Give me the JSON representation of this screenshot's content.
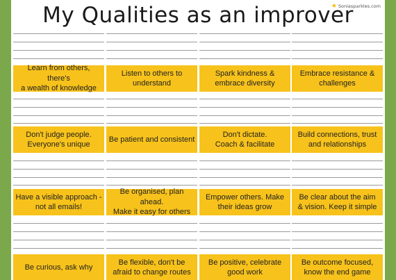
{
  "title": "My Qualities as an improver",
  "brand": {
    "name": "Soniasparkles.com",
    "icon": "star-icon",
    "color": "#f2b800"
  },
  "colors": {
    "card": "#f7c21b",
    "border": "#7aa84a"
  },
  "rows": [
    [
      "Learn from others, there's\na wealth of knowledge",
      "Listen to others to\nunderstand",
      "Spark kindness &\nembrace diversity",
      "Embrace resistance &\nchallenges"
    ],
    [
      "Don't judge people.\nEveryone's unique",
      "Be patient and consistent",
      "Don't dictate.\nCoach & facilitate",
      "Build connections, trust\nand relationships"
    ],
    [
      "Have a visible approach -\nnot all emails!",
      "Be organised, plan ahead.\nMake it easy for others",
      "Empower others. Make\ntheir ideas grow",
      "Be clear about the aim\n& vision. Keep it simple"
    ],
    [
      "Be curious, ask why",
      "Be flexible, don't be\nafraid to change routes",
      "Be positive, celebrate\ngood work",
      "Be outcome focused,\nknow the end game"
    ]
  ]
}
